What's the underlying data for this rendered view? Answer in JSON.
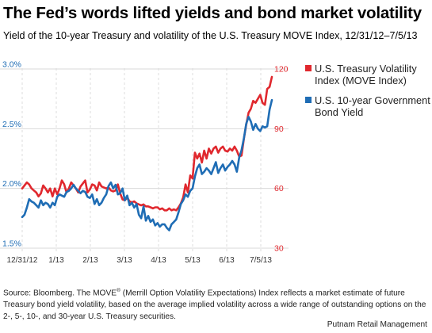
{
  "title": "The Fed’s words lifted yields and bond market volatility",
  "subtitle": "Yield of the 10-year Treasury and volatility of the U.S. Treasury MOVE Index, 12/31/12–7/5/13",
  "source": {
    "before_sup": "Source: Bloomberg. The MOVE",
    "sup": "®",
    "after_sup": " (Merrill Option Volatility Expectations) Index reflects a market estimate of future Treasury bond yield volatility, based on the average implied volatility across a wide range of outstanding options on the 2-, 5-, 10-, and 30-year U.S. Treasury securities."
  },
  "credit": "Putnam Retail Management",
  "chart_data": {
    "type": "line",
    "x_ticks": [
      "12/31/12",
      "1/13",
      "2/13",
      "3/13",
      "4/13",
      "5/13",
      "6/13",
      "7/5/13"
    ],
    "y_left": {
      "ticks": [
        "1.5%",
        "2.0%",
        "2.5%",
        "3.0%"
      ],
      "range": [
        1.5,
        3.0
      ],
      "color": "#1f6db5"
    },
    "y_right": {
      "ticks": [
        "30",
        "60",
        "90",
        "120"
      ],
      "range": [
        30,
        120
      ],
      "color": "#e0282e"
    },
    "grid": true,
    "legend_position": "top-right",
    "series": [
      {
        "name": "U.S. Treasury Volatility Index (MOVE Index)",
        "axis": "right",
        "color": "#e0282e",
        "values": [
          60,
          61.5,
          63,
          62,
          60,
          59,
          58,
          56,
          57.5,
          61.5,
          60,
          58,
          60,
          56,
          60,
          57,
          60,
          64,
          62,
          58,
          60,
          63,
          61.5,
          60,
          58,
          61,
          62.5,
          64,
          58,
          59.5,
          62,
          61.5,
          59,
          63,
          61,
          60.5,
          60,
          60.5,
          59,
          58.5,
          59,
          62,
          57.5,
          54.5,
          54,
          55.5,
          53.5,
          53,
          53.5,
          52.5,
          52,
          51.5,
          52,
          51,
          51,
          50.5,
          50,
          50.5,
          50.5,
          49.5,
          50,
          49,
          49,
          50,
          49,
          49.5,
          49,
          50.5,
          52.5,
          55.5,
          62,
          58,
          66.5,
          65,
          78,
          75,
          77.5,
          73,
          79,
          75,
          80,
          77.5,
          80,
          81,
          78,
          80,
          81,
          79,
          78.5,
          80,
          79,
          81,
          79,
          76,
          76.5,
          85,
          92,
          98,
          100,
          104,
          103,
          105,
          107,
          103,
          102,
          110,
          111,
          116
        ]
      },
      {
        "name": "U.S. 10-year Government Bond Yield",
        "axis": "left",
        "color": "#1f6db5",
        "values": [
          1.76,
          1.78,
          1.84,
          1.91,
          1.89,
          1.88,
          1.86,
          1.84,
          1.9,
          1.86,
          1.88,
          1.87,
          1.84,
          1.88,
          1.86,
          1.93,
          1.95,
          1.94,
          1.93,
          1.97,
          1.98,
          2.0,
          2.03,
          2.0,
          1.98,
          1.96,
          1.98,
          1.97,
          1.93,
          1.92,
          1.95,
          1.87,
          1.91,
          1.86,
          1.88,
          1.92,
          1.95,
          2.02,
          2.05,
          2.0,
          2.03,
          1.95,
          1.96,
          2.0,
          1.9,
          1.94,
          1.86,
          1.88,
          1.84,
          1.87,
          1.78,
          1.75,
          1.85,
          1.73,
          1.77,
          1.72,
          1.74,
          1.69,
          1.71,
          1.68,
          1.7,
          1.7,
          1.67,
          1.65,
          1.7,
          1.72,
          1.74,
          1.8,
          1.87,
          1.9,
          1.95,
          1.93,
          1.98,
          2.0,
          2.1,
          2.17,
          2.2,
          2.12,
          2.14,
          2.17,
          2.15,
          2.12,
          2.17,
          2.22,
          2.13,
          2.17,
          2.2,
          2.15,
          2.18,
          2.2,
          2.23,
          2.2,
          2.14,
          2.26,
          2.32,
          2.42,
          2.54,
          2.6,
          2.56,
          2.49,
          2.54,
          2.5,
          2.48,
          2.52,
          2.51,
          2.52,
          2.66,
          2.74
        ]
      }
    ]
  }
}
